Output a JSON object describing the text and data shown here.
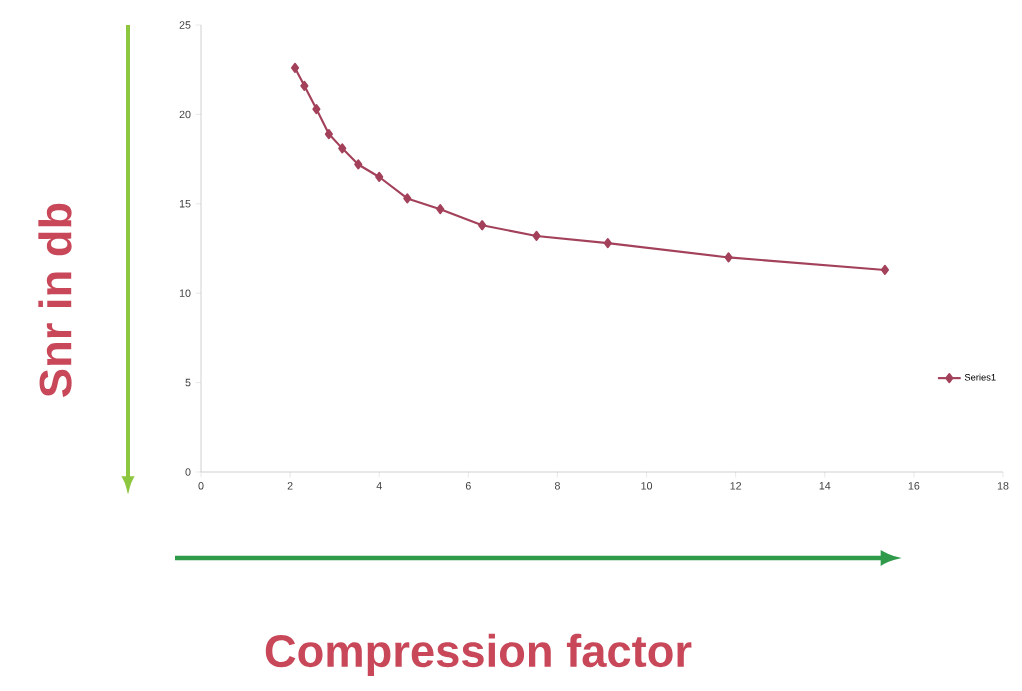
{
  "chart_data": {
    "type": "line",
    "xlabel": "Compression factor",
    "ylabel": "Snr in db",
    "x": [
      2.11,
      2.32,
      2.59,
      2.87,
      3.17,
      3.53,
      4.0,
      4.63,
      5.37,
      6.31,
      7.53,
      9.13,
      11.84,
      15.35
    ],
    "series": [
      {
        "name": "Series1",
        "color": "#a3405a",
        "values": [
          22.6,
          21.6,
          20.3,
          18.9,
          18.1,
          17.2,
          16.5,
          15.3,
          14.7,
          13.8,
          13.2,
          12.8,
          12.0,
          11.3
        ]
      }
    ],
    "xlim": [
      0,
      18
    ],
    "xticks": [
      0,
      2,
      4,
      6,
      8,
      10,
      12,
      14,
      16,
      18
    ],
    "ylim": [
      0,
      25
    ],
    "yticks": [
      0,
      5,
      10,
      15,
      20,
      25
    ],
    "grid": false,
    "legend": "right",
    "marker": "diamond",
    "line_style": "solid"
  }
}
